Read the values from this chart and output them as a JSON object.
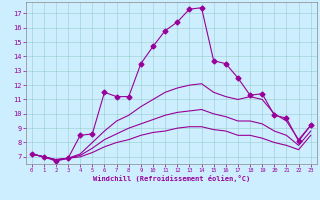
{
  "title": "",
  "xlabel": "Windchill (Refroidissement éolien,°C)",
  "bg_color": "#cceeff",
  "line_color": "#990099",
  "grid_color": "#99cccc",
  "xlim": [
    -0.5,
    23.5
  ],
  "ylim": [
    6.5,
    17.8
  ],
  "xticks": [
    0,
    1,
    2,
    3,
    4,
    5,
    6,
    7,
    8,
    9,
    10,
    11,
    12,
    13,
    14,
    15,
    16,
    17,
    18,
    19,
    20,
    21,
    22,
    23
  ],
  "yticks": [
    7,
    8,
    9,
    10,
    11,
    12,
    13,
    14,
    15,
    16,
    17
  ],
  "series": [
    {
      "x": [
        0,
        1,
        2,
        3,
        4,
        5,
        6,
        7,
        8,
        9,
        10,
        11,
        12,
        13,
        14,
        15,
        16,
        17,
        18,
        19,
        20,
        21,
        22,
        23
      ],
      "y": [
        7.2,
        7.0,
        6.7,
        6.9,
        8.5,
        8.6,
        11.5,
        11.2,
        11.2,
        13.5,
        14.7,
        15.8,
        16.4,
        17.3,
        17.4,
        13.7,
        13.5,
        12.5,
        11.3,
        11.4,
        9.9,
        9.7,
        8.1,
        9.2
      ],
      "marker": "D",
      "markersize": 2.5,
      "linewidth": 0.8,
      "has_marker": true
    },
    {
      "x": [
        0,
        1,
        2,
        3,
        4,
        5,
        6,
        7,
        8,
        9,
        10,
        11,
        12,
        13,
        14,
        15,
        16,
        17,
        18,
        19,
        20,
        21,
        22,
        23
      ],
      "y": [
        7.2,
        7.0,
        6.8,
        6.9,
        7.2,
        8.0,
        8.8,
        9.5,
        9.9,
        10.5,
        11.0,
        11.5,
        11.8,
        12.0,
        12.1,
        11.5,
        11.2,
        11.0,
        11.2,
        11.0,
        10.0,
        9.5,
        8.2,
        9.2
      ],
      "marker": null,
      "markersize": 0,
      "linewidth": 0.8,
      "has_marker": false
    },
    {
      "x": [
        0,
        1,
        2,
        3,
        4,
        5,
        6,
        7,
        8,
        9,
        10,
        11,
        12,
        13,
        14,
        15,
        16,
        17,
        18,
        19,
        20,
        21,
        22,
        23
      ],
      "y": [
        7.2,
        7.0,
        6.8,
        6.9,
        7.1,
        7.6,
        8.2,
        8.6,
        9.0,
        9.3,
        9.6,
        9.9,
        10.1,
        10.2,
        10.3,
        10.0,
        9.8,
        9.5,
        9.5,
        9.3,
        8.8,
        8.5,
        7.8,
        8.8
      ],
      "marker": null,
      "markersize": 0,
      "linewidth": 0.8,
      "has_marker": false
    },
    {
      "x": [
        0,
        1,
        2,
        3,
        4,
        5,
        6,
        7,
        8,
        9,
        10,
        11,
        12,
        13,
        14,
        15,
        16,
        17,
        18,
        19,
        20,
        21,
        22,
        23
      ],
      "y": [
        7.2,
        7.0,
        6.8,
        6.9,
        7.0,
        7.3,
        7.7,
        8.0,
        8.2,
        8.5,
        8.7,
        8.8,
        9.0,
        9.1,
        9.1,
        8.9,
        8.8,
        8.5,
        8.5,
        8.3,
        8.0,
        7.8,
        7.5,
        8.5
      ],
      "marker": null,
      "markersize": 0,
      "linewidth": 0.8,
      "has_marker": false
    }
  ]
}
